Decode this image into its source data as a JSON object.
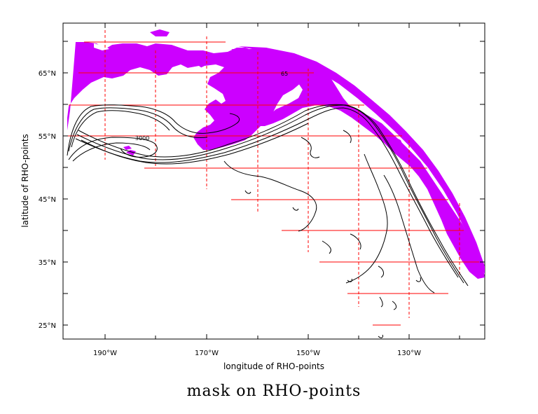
{
  "figure": {
    "title": "mask on RHO-points",
    "xlabel": "longitude of RHO-points",
    "ylabel": "latitude of RHO-points",
    "colors": {
      "mask": "#cc00ff",
      "grid": "#ff0000",
      "contour": "#000000",
      "frame": "#000000"
    }
  },
  "axes": {
    "x_ticks": [
      {
        "value": -190,
        "label": "190°W"
      },
      {
        "value": -170,
        "label": "170°W"
      },
      {
        "value": -150,
        "label": "150°W"
      },
      {
        "value": -130,
        "label": "130°W"
      }
    ],
    "y_ticks": [
      {
        "value": 65,
        "label": "65°N"
      },
      {
        "value": 55,
        "label": "55°N"
      },
      {
        "value": 45,
        "label": "45°N"
      },
      {
        "value": 35,
        "label": "35°N"
      },
      {
        "value": 25,
        "label": "25°N"
      }
    ],
    "contour_labels": [
      "3000",
      "65"
    ]
  }
}
